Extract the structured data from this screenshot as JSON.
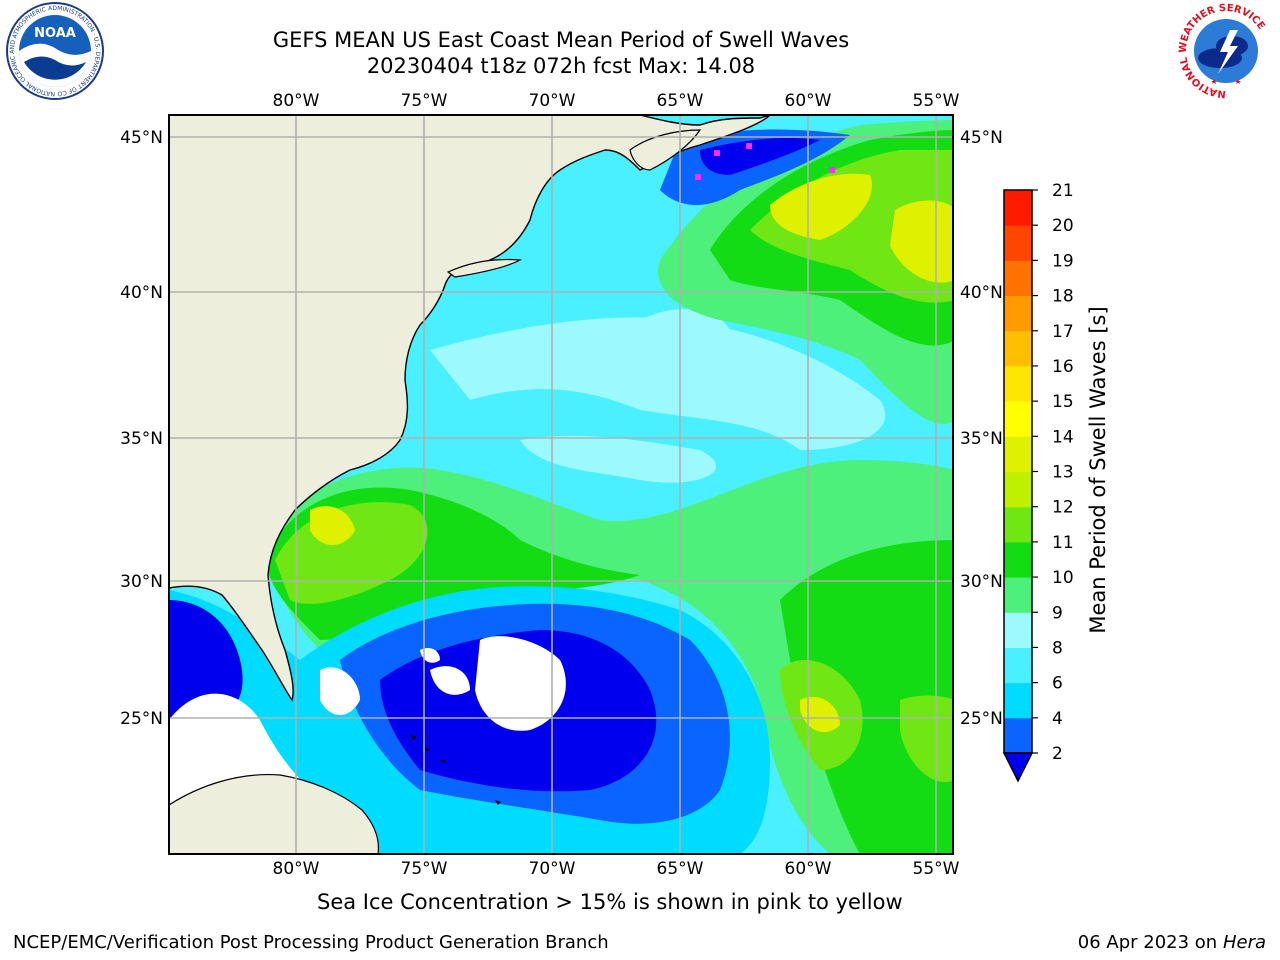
{
  "header": {
    "title_line1": "GEFS MEAN US East Coast Mean Period of Swell Waves",
    "title_line2": "20230404 t18z 072h fcst   Max: 14.08"
  },
  "logos": {
    "left": {
      "text": "NOAA",
      "ring_text": "NATIONAL OCEANIC AND ATMOSPHERIC ADMINISTRATION · U.S. DEPARTMENT OF COMMERCE"
    },
    "right": {
      "ring_text": "NATIONAL WEATHER SERVICE"
    }
  },
  "map": {
    "lon_labels": [
      "80°W",
      "75°W",
      "70°W",
      "65°W",
      "60°W",
      "55°W"
    ],
    "lat_labels": [
      "45°N",
      "40°N",
      "35°N",
      "30°N",
      "25°N"
    ],
    "extent": {
      "lon": [
        -85,
        -54
      ],
      "lat": [
        20.5,
        45.8
      ]
    },
    "land_color": "#eeeedd",
    "gridline_color": "#b0b0b0"
  },
  "colorbar": {
    "label": "Mean Period of Swell Waves [s]",
    "ticks": [
      "2",
      "4",
      "6",
      "8",
      "9",
      "10",
      "11",
      "12",
      "13",
      "14",
      "15",
      "16",
      "17",
      "18",
      "19",
      "20",
      "21"
    ],
    "colors": [
      "#0a64ff",
      "#00dcff",
      "#4af0ff",
      "#9cfaff",
      "#4cf07a",
      "#14dc14",
      "#70e614",
      "#bff000",
      "#dff000",
      "#ffff00",
      "#ffe600",
      "#ffbf00",
      "#ff9a00",
      "#ff7200",
      "#ff4600",
      "#ff1a00"
    ],
    "under_color": "#0000ee"
  },
  "footer": {
    "ice_note": "Sea Ice Concentration > 15% is shown in pink to yellow",
    "left": "NCEP/EMC/Verification Post Processing Product Generation Branch",
    "right_date": "06 Apr 2023 on ",
    "right_host": "Hera"
  }
}
